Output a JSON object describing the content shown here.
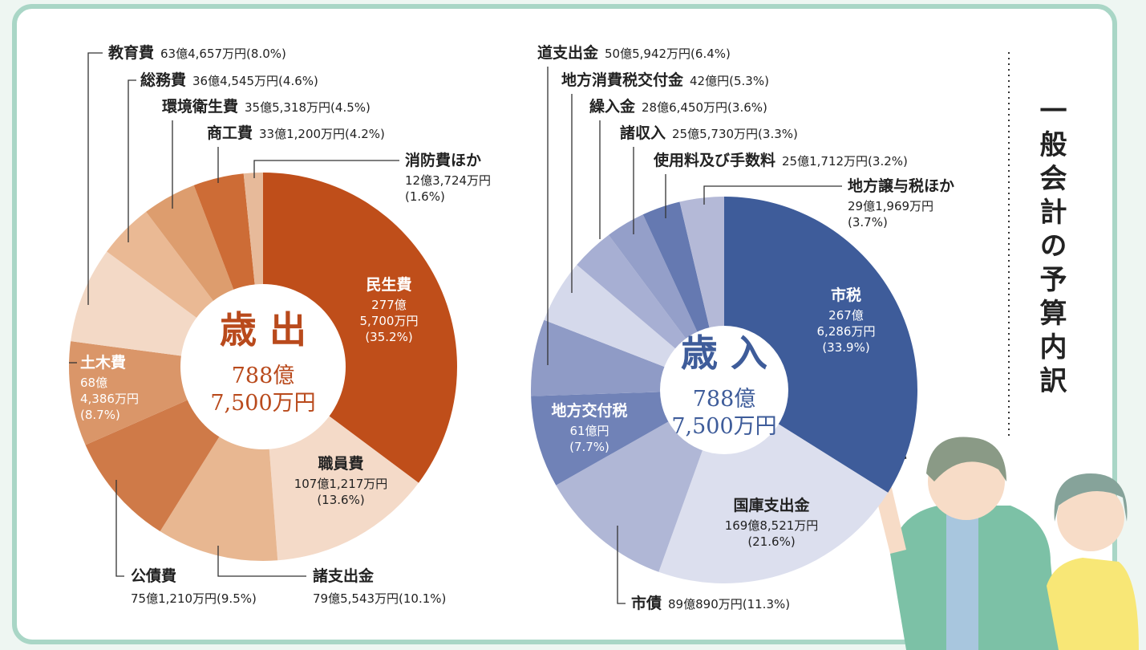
{
  "title": "一般会計の予算内訳",
  "chart_data": [
    {
      "type": "donut",
      "title": "歳 出",
      "total": "788億7,500万円",
      "categories": [
        "民生費",
        "職員費",
        "諸支出金",
        "公債費",
        "土木費",
        "教育費",
        "総務費",
        "環境衛生費",
        "商工費",
        "消防費ほか"
      ],
      "amounts": [
        "277億5,700万円",
        "107億1,217万円",
        "79億5,543万円",
        "75億1,210万円",
        "68億4,386万円",
        "63億4,657万円",
        "36億4,545万円",
        "35億5,318万円",
        "33億1,200万円",
        "12億3,724万円"
      ],
      "values": [
        35.2,
        13.6,
        10.1,
        9.5,
        8.7,
        8.0,
        4.6,
        4.5,
        4.2,
        1.6
      ],
      "value_labels": [
        "(35.2%)",
        "(13.6%)",
        "(10.1%)",
        "(9.5%)",
        "(8.7%)",
        "(8.0%)",
        "(4.6%)",
        "(4.5%)",
        "(4.2%)",
        "(1.6%)"
      ],
      "colors": [
        "#bf4e1a",
        "#f4dac8",
        "#e8b791",
        "#cf7a48",
        "#da9669",
        "#f3d9c6",
        "#eab994",
        "#dd9d6e",
        "#cd6c36",
        "#e7ba9a"
      ],
      "title_color": "#b94a1c"
    },
    {
      "type": "donut",
      "title": "歳 入",
      "total": "788億7,500万円",
      "categories": [
        "市税",
        "国庫支出金",
        "市債",
        "地方交付税",
        "道支出金",
        "地方消費税交付金",
        "繰入金",
        "諸収入",
        "使用料及び手数料",
        "地方譲与税ほか"
      ],
      "amounts": [
        "267億6,286万円",
        "169億8,521万円",
        "89億890万円",
        "61億円",
        "50億5,942万円",
        "42億円",
        "28億6,450万円",
        "25億5,730万円",
        "25億1,712万円",
        "29億1,969万円"
      ],
      "values": [
        33.9,
        21.6,
        11.3,
        7.7,
        6.4,
        5.3,
        3.6,
        3.3,
        3.2,
        3.7
      ],
      "value_labels": [
        "(33.9%)",
        "(21.6%)",
        "(11.3%)",
        "(7.7%)",
        "(6.4%)",
        "(5.3%)",
        "(3.6%)",
        "(3.3%)",
        "(3.2%)",
        "(3.7%)"
      ],
      "colors": [
        "#3e5c9a",
        "#dcdfee",
        "#b0b7d6",
        "#7082b7",
        "#8f9bc6",
        "#d5d9eb",
        "#a7afd3",
        "#949fc9",
        "#6579b1",
        "#b4b9d7"
      ],
      "title_color": "#3e5c9a"
    }
  ]
}
